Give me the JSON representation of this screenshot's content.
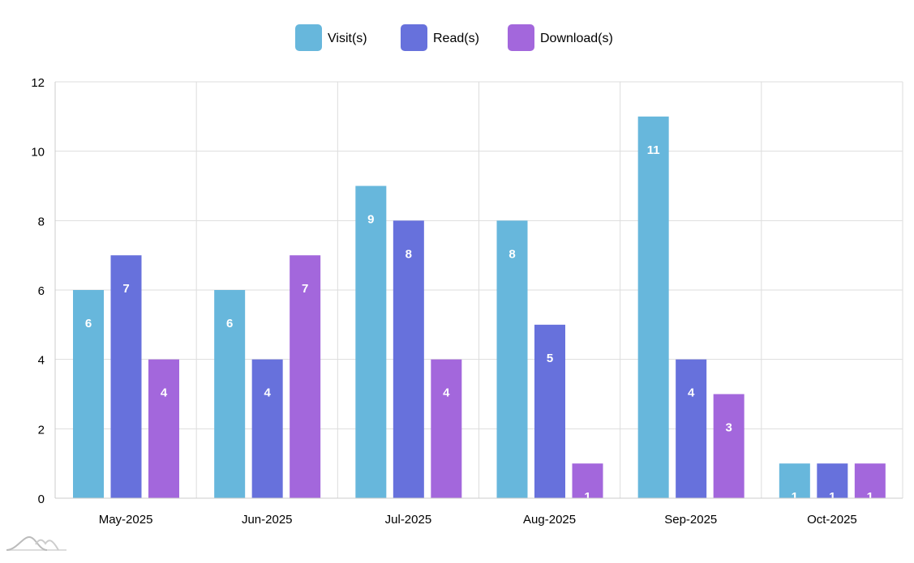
{
  "chart_data": {
    "type": "bar",
    "title": "",
    "xlabel": "",
    "ylabel": "",
    "categories": [
      "May-2025",
      "Jun-2025",
      "Jul-2025",
      "Aug-2025",
      "Sep-2025",
      "Oct-2025"
    ],
    "series": [
      {
        "name": "Visit(s)",
        "color": "#67b7dc",
        "values": [
          6,
          6,
          9,
          8,
          11,
          1
        ]
      },
      {
        "name": "Read(s)",
        "color": "#6771dc",
        "values": [
          7,
          4,
          8,
          5,
          4,
          1
        ]
      },
      {
        "name": "Download(s)",
        "color": "#a367dc",
        "values": [
          4,
          7,
          4,
          1,
          3,
          1
        ]
      }
    ],
    "ylim": [
      0,
      12
    ],
    "yticks": [
      0,
      2,
      4,
      6,
      8,
      10,
      12
    ],
    "grid": true,
    "legend": "top-center",
    "data_labels": true
  }
}
